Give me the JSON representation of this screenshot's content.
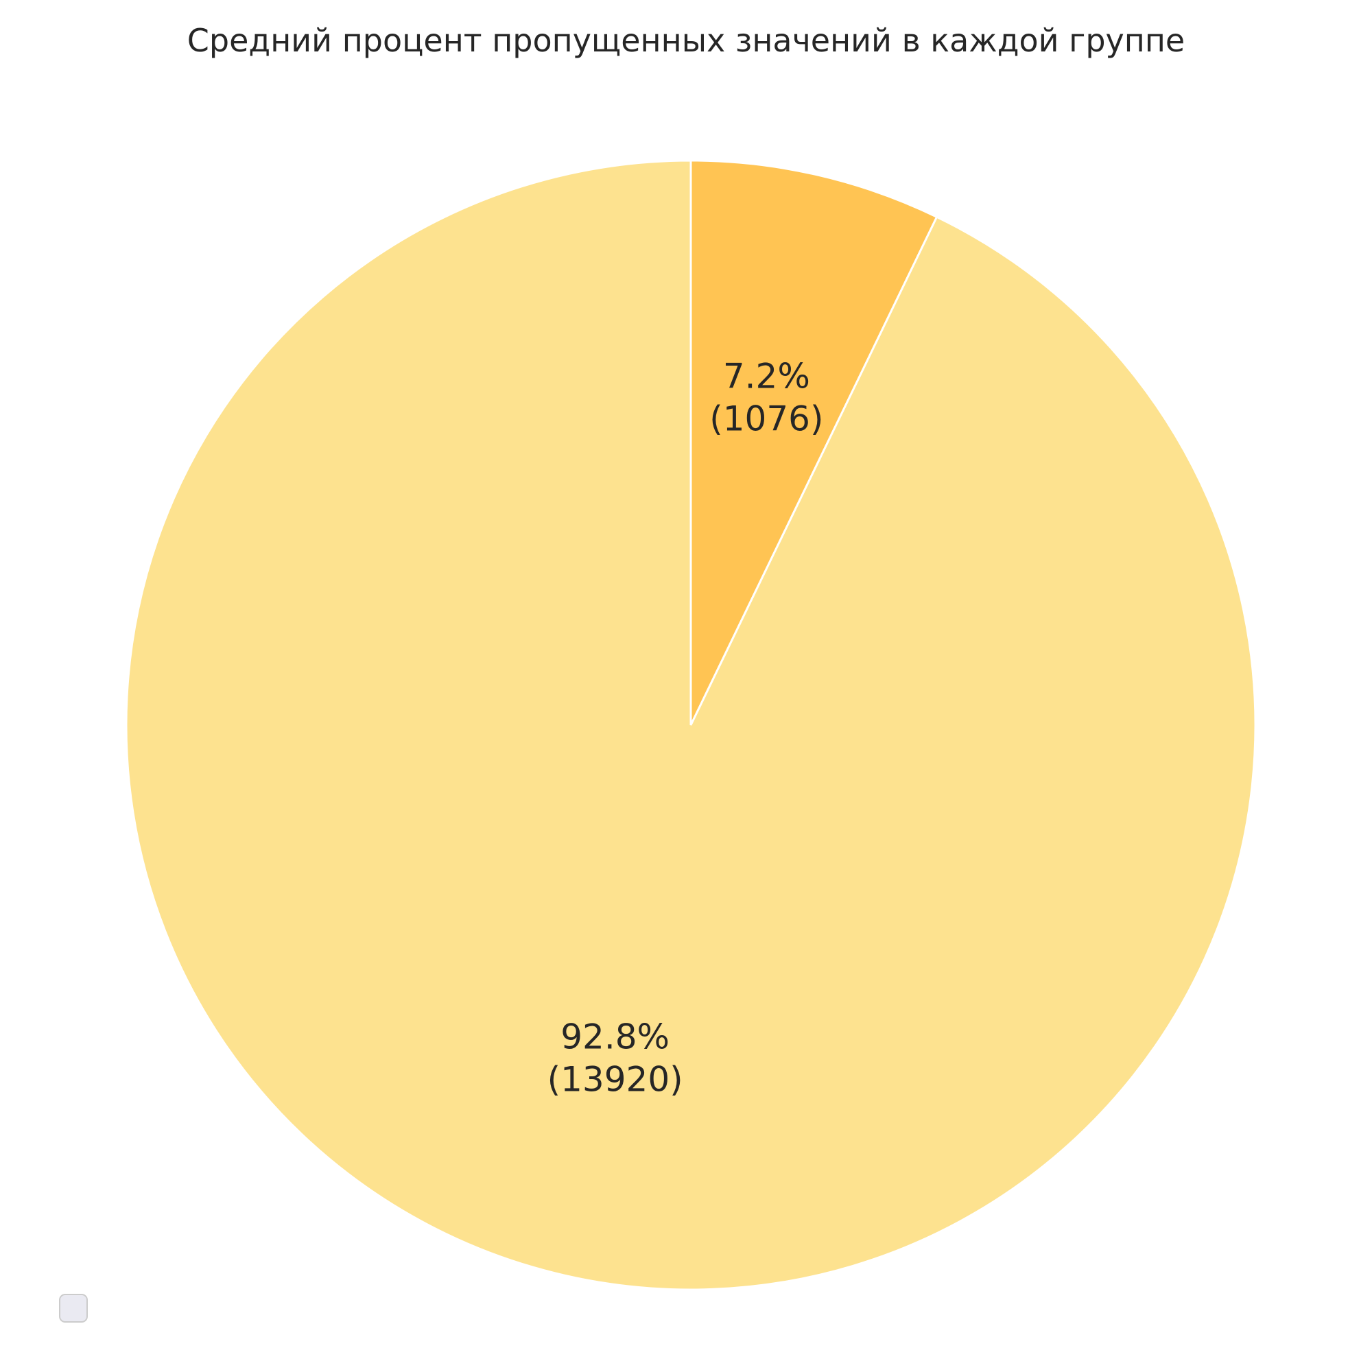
{
  "chart_data": {
    "type": "pie",
    "title": "Средний процент пропущенных значений в каждой группе",
    "start_angle": "top (12 o'clock), clockwise",
    "legend": {
      "placement": "lower-left",
      "entries": []
    },
    "slices": [
      {
        "value": 1076,
        "percent_label": "7.2%",
        "value_label": "(1076)",
        "color": "#ffc453"
      },
      {
        "value": 13920,
        "percent_label": "92.8%",
        "value_label": "(13920)",
        "color": "#fde28f"
      }
    ]
  }
}
